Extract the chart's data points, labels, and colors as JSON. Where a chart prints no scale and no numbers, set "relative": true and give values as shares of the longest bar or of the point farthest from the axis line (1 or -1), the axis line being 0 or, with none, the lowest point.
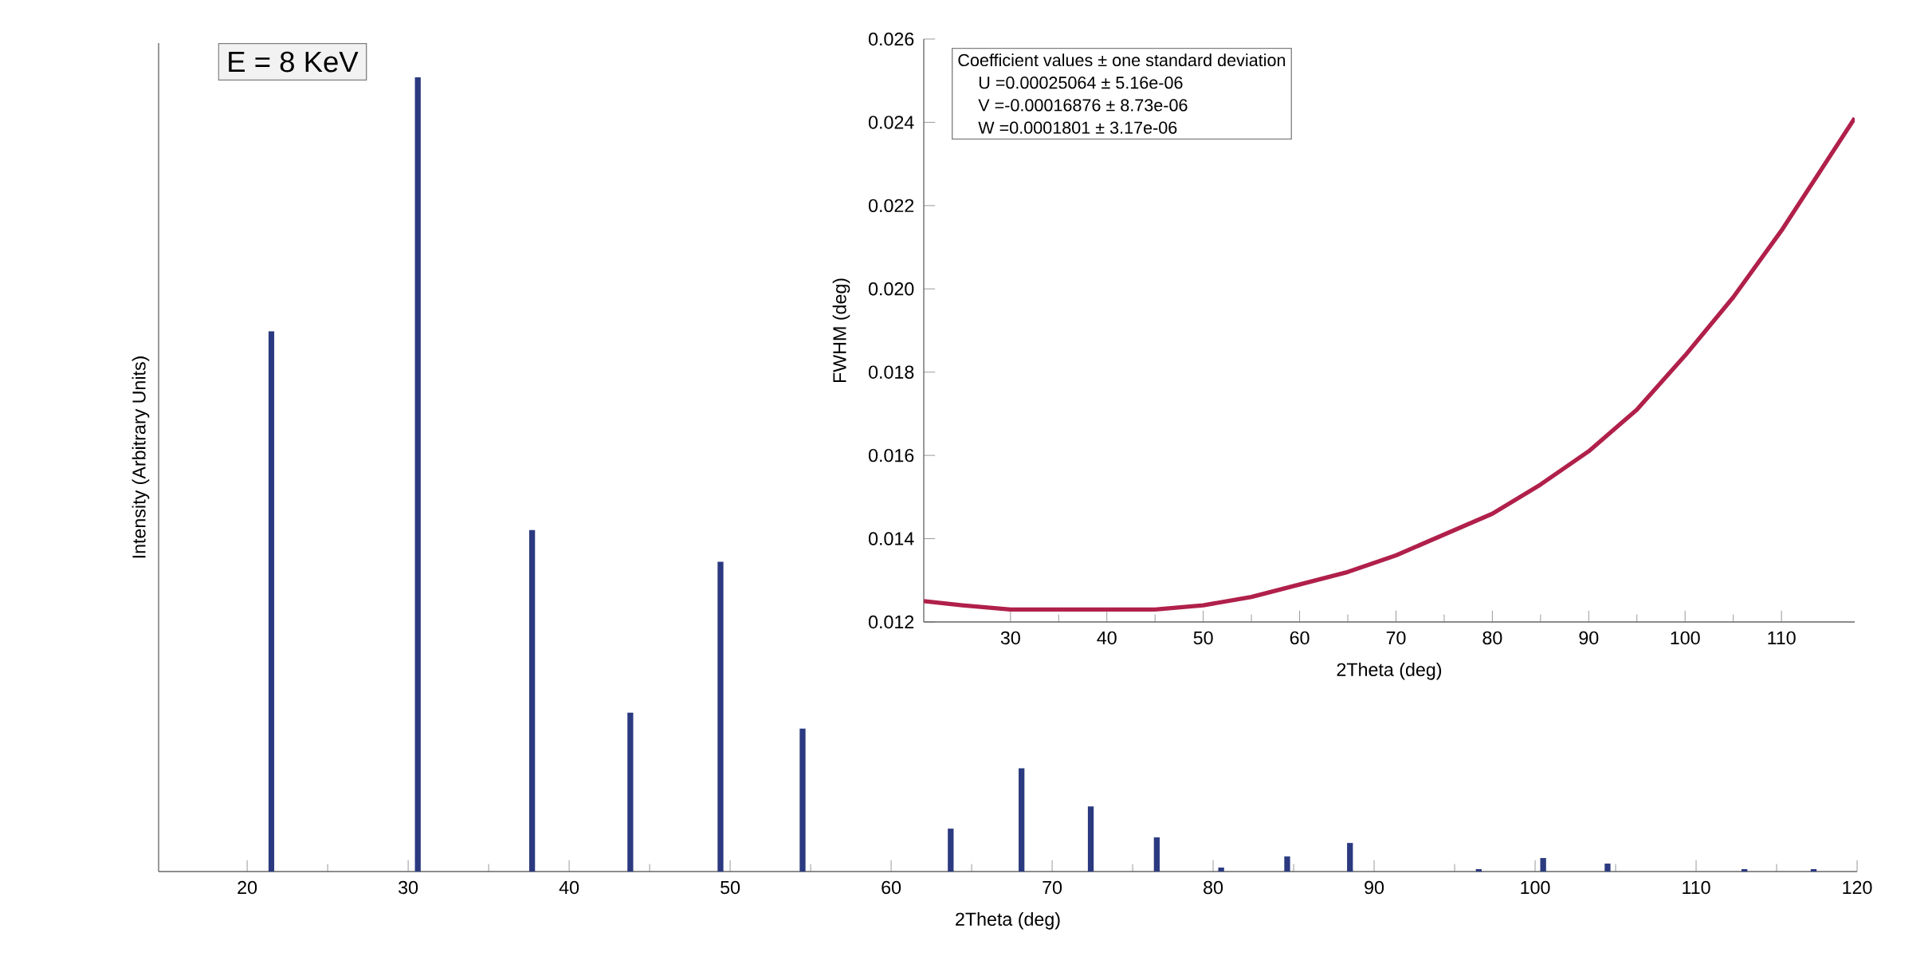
{
  "chart_data": [
    {
      "type": "bar",
      "relative": true,
      "xlabel": "2Theta (deg)",
      "ylabel": "Intensity (Arbitrary Units)",
      "annotations": [
        "E = 8 KeV"
      ],
      "color": "#2b3a80",
      "x": [
        21.5,
        30.6,
        37.7,
        43.8,
        49.4,
        54.5,
        63.7,
        68.1,
        72.4,
        76.5,
        80.5,
        84.6,
        88.5,
        96.5,
        100.5,
        104.5,
        113,
        117.3
      ],
      "values": [
        0.68,
        1,
        0.43,
        0.2,
        0.39,
        0.18,
        0.054,
        0.13,
        0.082,
        0.043,
        0.005,
        0.019,
        0.036,
        0.003,
        0.017,
        0.01,
        0.003,
        0.003
      ],
      "xlim": [
        14.5,
        120
      ],
      "xticks": [
        20,
        30,
        40,
        50,
        60,
        70,
        80,
        90,
        100,
        110,
        120
      ]
    },
    {
      "type": "line",
      "xlabel": "2Theta (deg)",
      "ylabel": "FWHM (deg)",
      "color": "#b0204a",
      "annotations": [
        "Coefficient values ± one standard deviation",
        "U  =0.00025064 ± 5.16e-06",
        "V  =-0.00016876 ± 8.73e-06",
        "W  =0.0001801 ± 3.17e-06"
      ],
      "x": [
        21,
        25,
        30,
        35,
        40,
        45,
        50,
        55,
        60,
        65,
        70,
        75,
        80,
        85,
        90,
        95,
        100,
        105,
        110,
        117.6
      ],
      "values": [
        0.0125,
        0.0124,
        0.0123,
        0.0123,
        0.0123,
        0.0123,
        0.0124,
        0.0126,
        0.0129,
        0.0132,
        0.0136,
        0.0141,
        0.0146,
        0.0153,
        0.0161,
        0.0171,
        0.0184,
        0.0198,
        0.0214,
        0.0241
      ],
      "xlim": [
        21,
        117.6
      ],
      "ylim": [
        0.012,
        0.026
      ],
      "xticks": [
        30,
        40,
        50,
        60,
        70,
        80,
        90,
        100,
        110
      ],
      "yticks": [
        0.012,
        0.014,
        0.016,
        0.018,
        {
          "value": 0.02,
          "label": "0.020"
        },
        0.022,
        0.024,
        0.026
      ]
    }
  ]
}
